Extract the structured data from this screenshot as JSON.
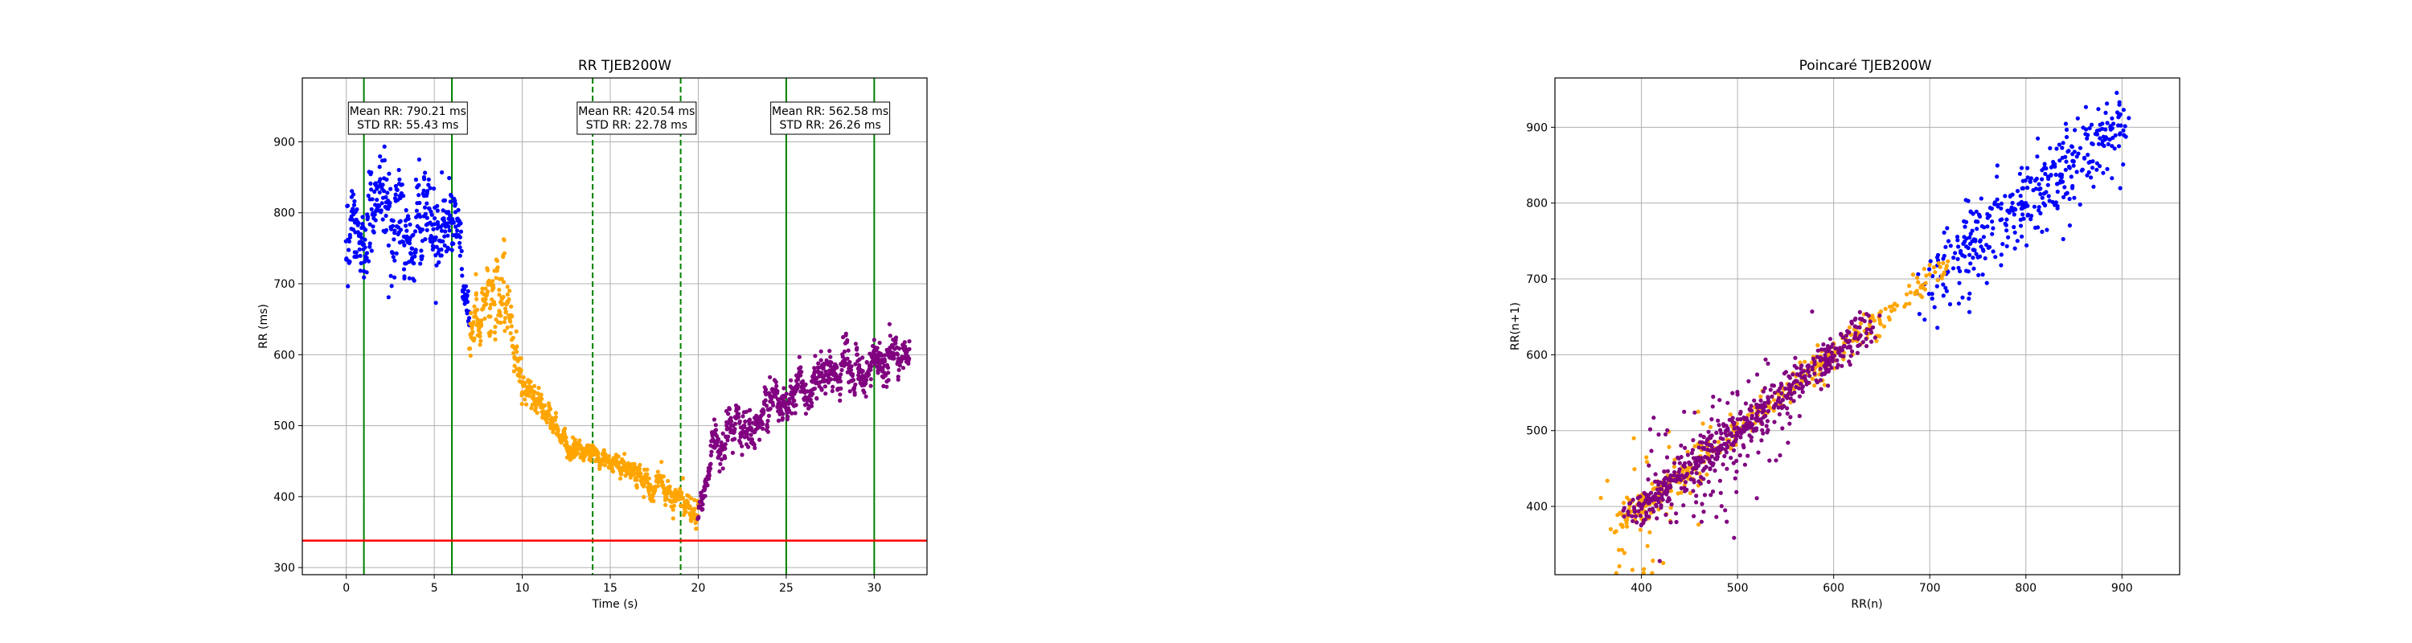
{
  "chart_data": [
    {
      "type": "scatter",
      "title": "RR TJEB200W",
      "xlabel": "Time (s)",
      "ylabel": "RR (ms)",
      "xlim": [
        -2.5,
        33
      ],
      "ylim": [
        290,
        990
      ],
      "xticks": [
        0,
        5,
        10,
        15,
        20,
        25,
        30
      ],
      "yticks": [
        300,
        400,
        500,
        600,
        700,
        800,
        900
      ],
      "grid": true,
      "series": [
        {
          "color": "#0000ff",
          "segments": [
            {
              "t": [
                0.0,
                3.0
              ],
              "y": [
                790,
                805
              ],
              "sd": 50
            },
            {
              "t": [
                3.0,
                5.0
              ],
              "y": [
                800,
                760
              ],
              "sd": 50
            },
            {
              "t": [
                5.0,
                6.4
              ],
              "y": [
                780,
                790
              ],
              "sd": 45
            },
            {
              "t": [
                6.4,
                7.0
              ],
              "y": [
                770,
                640
              ],
              "sd": 25
            }
          ]
        },
        {
          "color": "#ffa500",
          "segments": [
            {
              "t": [
                7.0,
                8.1
              ],
              "y": [
                620,
                690
              ],
              "sd": 30
            },
            {
              "t": [
                8.1,
                9.0
              ],
              "y": [
                690,
                720
              ],
              "sd": 35
            },
            {
              "t": [
                9.0,
                10.0
              ],
              "y": [
                640,
                560
              ],
              "sd": 25
            },
            {
              "t": [
                10.0,
                13.0
              ],
              "y": [
                555,
                470
              ],
              "sd": 12
            },
            {
              "t": [
                13.0,
                16.0
              ],
              "y": [
                470,
                440
              ],
              "sd": 11
            },
            {
              "t": [
                16.0,
                18.5
              ],
              "y": [
                440,
                395
              ],
              "sd": 11
            },
            {
              "t": [
                18.5,
                20.0
              ],
              "y": [
                400,
                380
              ],
              "sd": 14
            }
          ]
        },
        {
          "color": "#800080",
          "segments": [
            {
              "t": [
                20.0,
                20.7
              ],
              "y": [
                370,
                450
              ],
              "sd": 12
            },
            {
              "t": [
                20.7,
                24.0
              ],
              "y": [
                470,
                520
              ],
              "sd": 22
            },
            {
              "t": [
                24.0,
                27.0
              ],
              "y": [
                535,
                560
              ],
              "sd": 20
            },
            {
              "t": [
                27.0,
                32.0
              ],
              "y": [
                560,
                600
              ],
              "sd": 22
            }
          ]
        }
      ],
      "vlines": [
        {
          "x": 1,
          "style": "solid",
          "color": "#008000"
        },
        {
          "x": 6,
          "style": "solid",
          "color": "#008000"
        },
        {
          "x": 14,
          "style": "dashed",
          "color": "#008000"
        },
        {
          "x": 19,
          "style": "dashed",
          "color": "#008000"
        },
        {
          "x": 25,
          "style": "solid",
          "color": "#008000"
        },
        {
          "x": 30,
          "style": "solid",
          "color": "#008000"
        }
      ],
      "hline": {
        "y": 338,
        "color": "#ff0000"
      },
      "annotations": [
        {
          "x": 3.5,
          "lines": [
            "Mean RR: 790.21 ms",
            "STD RR: 55.43 ms"
          ]
        },
        {
          "x": 16.5,
          "lines": [
            "Mean RR: 420.54 ms",
            "STD RR: 22.78 ms"
          ]
        },
        {
          "x": 27.5,
          "lines": [
            "Mean RR: 562.58 ms",
            "STD RR: 26.26 ms"
          ]
        }
      ]
    },
    {
      "type": "scatter",
      "title": "Poincaré TJEB200W",
      "xlabel": "RR(n)",
      "ylabel": "RR(n+1)",
      "xlim": [
        310,
        960
      ],
      "ylim": [
        310,
        965
      ],
      "xticks": [
        400,
        500,
        600,
        700,
        800,
        900
      ],
      "yticks": [
        400,
        500,
        600,
        700,
        800,
        900
      ],
      "grid": true,
      "series": [
        {
          "color": "#0000ff",
          "clusters": [
            {
              "x": [
                700,
                900
              ],
              "spread": 28,
              "n": 380
            }
          ]
        },
        {
          "color": "#ffa500",
          "clusters": [
            {
              "x": [
                370,
                720
              ],
              "spread": 10,
              "n": 360
            },
            {
              "x": [
                380,
                450
              ],
              "spread": 40,
              "n": 60
            }
          ]
        },
        {
          "color": "#800080",
          "clusters": [
            {
              "x": [
                390,
                640
              ],
              "spread": 14,
              "n": 520
            },
            {
              "x": [
                400,
                560
              ],
              "spread": 55,
              "n": 120
            }
          ]
        }
      ]
    }
  ]
}
